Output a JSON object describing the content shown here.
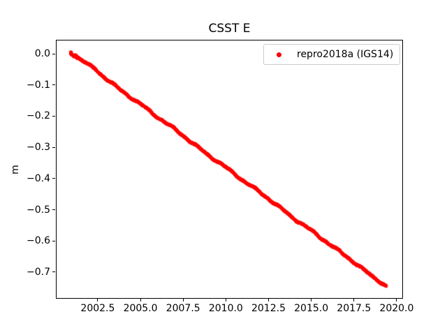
{
  "chart_data": {
    "type": "scatter",
    "title": "CSST E",
    "xlabel": "",
    "ylabel": "m",
    "background": "#ffffff",
    "axis_color": "#000000",
    "grid": false,
    "xlim": [
      2000.05,
      2020.33
    ],
    "ylim": [
      -0.783,
      0.045
    ],
    "x_ticks": {
      "values": [
        2002.5,
        2005.0,
        2007.5,
        2010.0,
        2012.5,
        2015.0,
        2017.5,
        2020.0
      ],
      "labels": [
        "2002.5",
        "2005.0",
        "2007.5",
        "2010.0",
        "2012.5",
        "2015.0",
        "2017.5",
        "2020.0"
      ]
    },
    "y_ticks": {
      "values": [
        0.0,
        -0.1,
        -0.2,
        -0.3,
        -0.4,
        -0.5,
        -0.6,
        -0.7
      ],
      "labels": [
        "0.0",
        "−0.1",
        "−0.2",
        "−0.3",
        "−0.4",
        "−0.5",
        "−0.6",
        "−0.7"
      ]
    },
    "legend": {
      "position": "upper right",
      "border_color": "#cccccc",
      "entries": [
        {
          "label": "repro2018a (IGS14)",
          "marker": "point",
          "color": "#ff0000"
        }
      ]
    },
    "series": [
      {
        "name": "repro2018a (IGS14)",
        "color": "#ff0000",
        "marker": "point",
        "marker_radius_px": 2.1,
        "x_start": 2000.91,
        "x_end": 2019.39,
        "trend_m_per_yr": -0.0406,
        "scatter_band_m": 0.0055,
        "anchors": [
          [
            2000.91,
            0.0045
          ],
          [
            2001.5,
            -0.0175
          ],
          [
            2002.0,
            -0.037
          ],
          [
            2002.4,
            -0.05
          ],
          [
            2002.6,
            -0.062
          ],
          [
            2003.0,
            -0.08
          ],
          [
            2004.0,
            -0.123
          ],
          [
            2005.0,
            -0.161
          ],
          [
            2006.0,
            -0.203
          ],
          [
            2007.0,
            -0.241
          ],
          [
            2008.0,
            -0.284
          ],
          [
            2009.0,
            -0.326
          ],
          [
            2010.0,
            -0.364
          ],
          [
            2011.0,
            -0.406
          ],
          [
            2012.0,
            -0.444
          ],
          [
            2013.0,
            -0.486
          ],
          [
            2014.0,
            -0.529
          ],
          [
            2015.0,
            -0.566
          ],
          [
            2016.0,
            -0.608
          ],
          [
            2017.0,
            -0.647
          ],
          [
            2018.0,
            -0.69
          ],
          [
            2019.0,
            -0.73
          ],
          [
            2019.39,
            -0.746
          ]
        ]
      }
    ]
  }
}
